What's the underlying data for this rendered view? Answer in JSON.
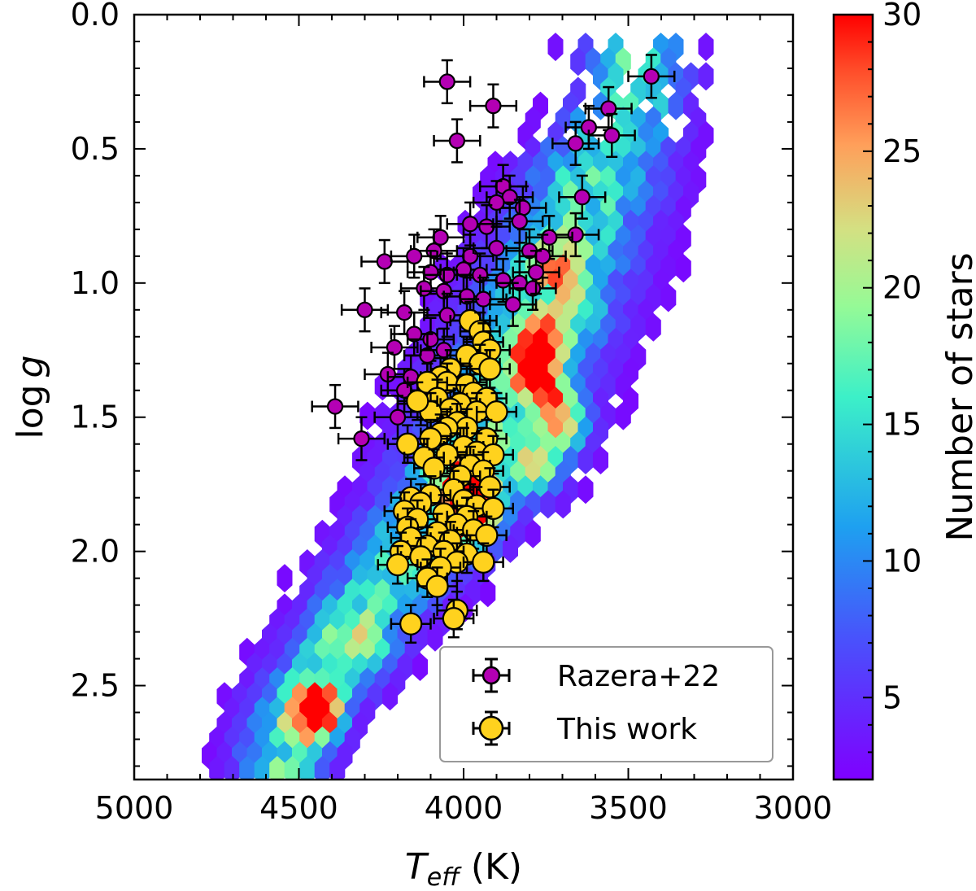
{
  "chart_data": {
    "type": "scatter",
    "xlabel": "T",
    "xlabel_sub": "eff",
    "xlabel_unit": " (K)",
    "ylabel": "log",
    "ylabel_var": "g",
    "xlim": [
      5000,
      3000
    ],
    "ylim": [
      2.85,
      0.0
    ],
    "x_reversed": true,
    "y_reversed": true,
    "xticks": [
      5000,
      4500,
      4000,
      3500,
      3000
    ],
    "xtick_labels": [
      "5000",
      "4500",
      "4000",
      "3500",
      "3000"
    ],
    "yticks": [
      0.0,
      0.5,
      1.0,
      1.5,
      2.0,
      2.5
    ],
    "ytick_labels": [
      "0.0",
      "0.5",
      "1.0",
      "1.5",
      "2.0",
      "2.5"
    ],
    "colorbar": {
      "label": "Number of stars",
      "range": [
        2,
        30
      ],
      "ticks": [
        5,
        10,
        15,
        20,
        25,
        30
      ],
      "tick_labels": [
        "5",
        "10",
        "15",
        "20",
        "25",
        "30"
      ],
      "colormap": "rainbow"
    },
    "legend": {
      "position": "lower-right",
      "entries": [
        {
          "label": "Razera+22",
          "color": "#b400b4"
        },
        {
          "label": "This work",
          "color": "#ffd21e"
        }
      ]
    },
    "density_ridge": [
      {
        "teff": 4550,
        "logg": 2.72,
        "width": 190
      },
      {
        "teff": 4450,
        "logg": 2.5,
        "width": 230
      },
      {
        "teff": 4300,
        "logg": 2.25,
        "width": 260
      },
      {
        "teff": 4150,
        "logg": 2.0,
        "width": 280
      },
      {
        "teff": 4000,
        "logg": 1.75,
        "width": 320
      },
      {
        "teff": 3880,
        "logg": 1.45,
        "width": 330
      },
      {
        "teff": 3780,
        "logg": 1.15,
        "width": 330
      },
      {
        "teff": 3680,
        "logg": 0.85,
        "width": 310
      },
      {
        "teff": 3580,
        "logg": 0.55,
        "width": 280
      },
      {
        "teff": 3480,
        "logg": 0.3,
        "width": 220
      }
    ],
    "density_hotspots": [
      {
        "teff": 3790,
        "logg": 1.32,
        "value": 30
      },
      {
        "teff": 3770,
        "logg": 1.22,
        "value": 28
      },
      {
        "teff": 3740,
        "logg": 1.42,
        "value": 26
      },
      {
        "teff": 3700,
        "logg": 1.55,
        "value": 30
      },
      {
        "teff": 3780,
        "logg": 1.7,
        "value": 28
      },
      {
        "teff": 4000,
        "logg": 1.75,
        "value": 30
      },
      {
        "teff": 3980,
        "logg": 1.9,
        "value": 28
      },
      {
        "teff": 3950,
        "logg": 1.85,
        "value": 25
      },
      {
        "teff": 4440,
        "logg": 2.6,
        "value": 30
      },
      {
        "teff": 4450,
        "logg": 2.65,
        "value": 24
      },
      {
        "teff": 3720,
        "logg": 0.95,
        "value": 22
      },
      {
        "teff": 3660,
        "logg": 1.1,
        "value": 20
      },
      {
        "teff": 4280,
        "logg": 2.4,
        "value": 18
      },
      {
        "teff": 4350,
        "logg": 2.3,
        "value": 16
      }
    ],
    "series": [
      {
        "name": "Razera+22",
        "marker_color": "#b400b4",
        "teff_err": 70,
        "logg_err": 0.08,
        "points": [
          [
            4050,
            0.25
          ],
          [
            3910,
            0.34
          ],
          [
            4020,
            0.47
          ],
          [
            3430,
            0.23
          ],
          [
            3560,
            0.35
          ],
          [
            3620,
            0.42
          ],
          [
            3660,
            0.48
          ],
          [
            3550,
            0.45
          ],
          [
            3640,
            0.68
          ],
          [
            3660,
            0.82
          ],
          [
            3740,
            0.83
          ],
          [
            3880,
            0.64
          ],
          [
            3860,
            0.68
          ],
          [
            3820,
            0.72
          ],
          [
            3900,
            0.7
          ],
          [
            3830,
            0.77
          ],
          [
            3930,
            0.79
          ],
          [
            3980,
            0.78
          ],
          [
            4070,
            0.83
          ],
          [
            4090,
            0.88
          ],
          [
            3980,
            0.9
          ],
          [
            3900,
            0.87
          ],
          [
            3800,
            0.88
          ],
          [
            3760,
            0.9
          ],
          [
            4240,
            0.92
          ],
          [
            4150,
            0.9
          ],
          [
            4100,
            0.96
          ],
          [
            4050,
            0.97
          ],
          [
            4000,
            0.95
          ],
          [
            3950,
            0.97
          ],
          [
            3880,
            0.99
          ],
          [
            3830,
            1.0
          ],
          [
            3790,
            1.02
          ],
          [
            3780,
            0.96
          ],
          [
            4120,
            1.02
          ],
          [
            4060,
            1.03
          ],
          [
            3990,
            1.05
          ],
          [
            3940,
            1.06
          ],
          [
            3850,
            1.08
          ],
          [
            4300,
            1.1
          ],
          [
            4180,
            1.11
          ],
          [
            4050,
            1.12
          ],
          [
            3970,
            1.14
          ],
          [
            4210,
            1.24
          ],
          [
            4150,
            1.19
          ],
          [
            4100,
            1.21
          ],
          [
            4110,
            1.27
          ],
          [
            4060,
            1.25
          ],
          [
            4230,
            1.34
          ],
          [
            4180,
            1.4
          ],
          [
            4130,
            1.45
          ],
          [
            4390,
            1.46
          ],
          [
            4310,
            1.58
          ],
          [
            4200,
            1.5
          ],
          [
            4160,
            1.35
          ]
        ]
      },
      {
        "name": "This work",
        "marker_color": "#ffd21e",
        "teff_err": 60,
        "logg_err": 0.07,
        "points": [
          [
            3980,
            1.14
          ],
          [
            3950,
            1.18
          ],
          [
            3940,
            1.22
          ],
          [
            3920,
            1.25
          ],
          [
            3990,
            1.27
          ],
          [
            3950,
            1.3
          ],
          [
            3920,
            1.32
          ],
          [
            4040,
            1.32
          ],
          [
            4070,
            1.35
          ],
          [
            4050,
            1.37
          ],
          [
            4110,
            1.37
          ],
          [
            3990,
            1.38
          ],
          [
            3970,
            1.41
          ],
          [
            3930,
            1.43
          ],
          [
            4080,
            1.43
          ],
          [
            4010,
            1.45
          ],
          [
            4040,
            1.47
          ],
          [
            4100,
            1.48
          ],
          [
            4140,
            1.44
          ],
          [
            3960,
            1.48
          ],
          [
            3900,
            1.48
          ],
          [
            4020,
            1.52
          ],
          [
            3990,
            1.54
          ],
          [
            4050,
            1.54
          ],
          [
            4070,
            1.56
          ],
          [
            4100,
            1.58
          ],
          [
            3930,
            1.58
          ],
          [
            4170,
            1.6
          ],
          [
            4000,
            1.61
          ],
          [
            3960,
            1.63
          ],
          [
            4050,
            1.64
          ],
          [
            4120,
            1.65
          ],
          [
            3910,
            1.64
          ],
          [
            3980,
            1.68
          ],
          [
            4090,
            1.69
          ],
          [
            3940,
            1.7
          ],
          [
            4010,
            1.72
          ],
          [
            3920,
            1.76
          ],
          [
            4030,
            1.77
          ],
          [
            4100,
            1.79
          ],
          [
            4160,
            1.8
          ],
          [
            4000,
            1.81
          ],
          [
            4130,
            1.82
          ],
          [
            3960,
            1.83
          ],
          [
            3910,
            1.84
          ],
          [
            4180,
            1.85
          ],
          [
            4060,
            1.86
          ],
          [
            3990,
            1.87
          ],
          [
            4140,
            1.88
          ],
          [
            4020,
            1.9
          ],
          [
            4170,
            1.91
          ],
          [
            3970,
            1.92
          ],
          [
            4080,
            1.93
          ],
          [
            3930,
            1.94
          ],
          [
            4040,
            1.96
          ],
          [
            4160,
            1.95
          ],
          [
            4110,
            1.98
          ],
          [
            4190,
            2.0
          ],
          [
            3990,
            2.01
          ],
          [
            4060,
            2.0
          ],
          [
            4130,
            2.02
          ],
          [
            4020,
            2.04
          ],
          [
            3940,
            2.04
          ],
          [
            4200,
            2.05
          ],
          [
            4070,
            2.06
          ],
          [
            4110,
            2.1
          ],
          [
            4080,
            2.13
          ],
          [
            4020,
            2.22
          ],
          [
            4160,
            2.27
          ],
          [
            4030,
            2.25
          ]
        ]
      }
    ]
  }
}
